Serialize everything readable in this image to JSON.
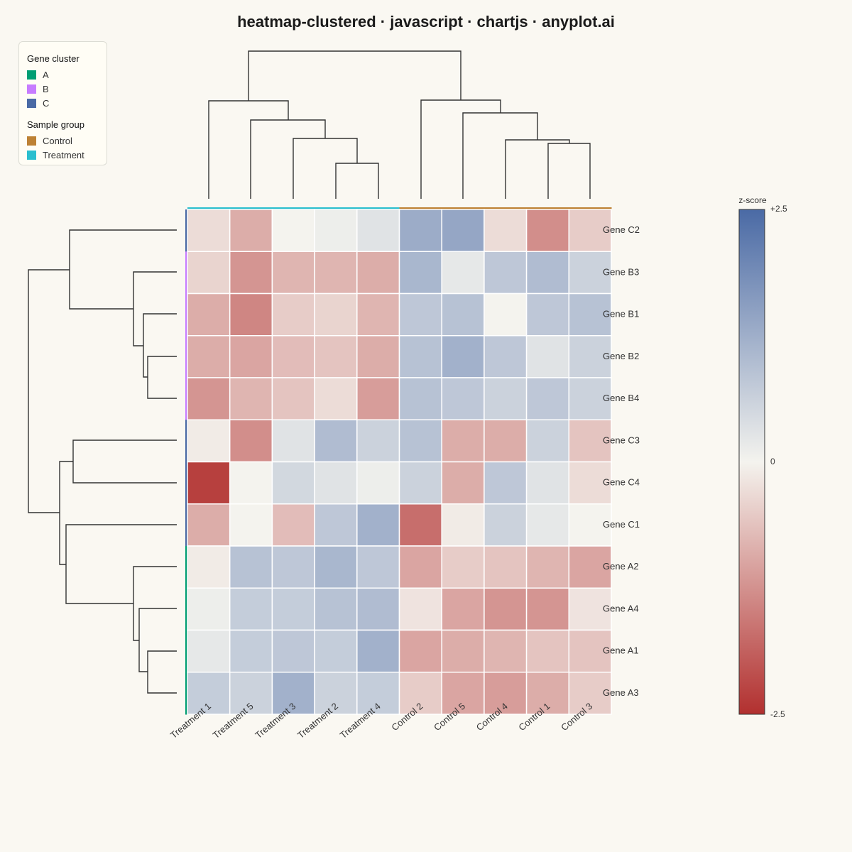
{
  "title": "heatmap-clustered · javascript · chartjs · anyplot.ai",
  "legend": {
    "gene_title": "Gene cluster",
    "gene_items": [
      {
        "label": "A",
        "color": "#009E73"
      },
      {
        "label": "B",
        "color": "#C77CFF"
      },
      {
        "label": "C",
        "color": "#4A6AA5"
      }
    ],
    "sample_title": "Sample group",
    "sample_items": [
      {
        "label": "Control",
        "color": "#BD8134"
      },
      {
        "label": "Treatment",
        "color": "#2BBECE"
      }
    ]
  },
  "colorbar": {
    "label": "z-score",
    "ticks": [
      "+2.5",
      "0",
      "-2.5"
    ],
    "colors": {
      "high": "#4A6AA5",
      "mid": "#F4F3EE",
      "low": "#B2302F"
    }
  },
  "chart_data": {
    "type": "heatmap",
    "title": "heatmap-clustered · javascript · chartjs · anyplot.ai",
    "columns": [
      "Treatment 1",
      "Treatment 5",
      "Treatment 3",
      "Treatment 2",
      "Treatment 4",
      "Control 2",
      "Control 5",
      "Control 4",
      "Control 1",
      "Control 3"
    ],
    "column_groups": [
      "Treatment",
      "Treatment",
      "Treatment",
      "Treatment",
      "Treatment",
      "Control",
      "Control",
      "Control",
      "Control",
      "Control"
    ],
    "rows": [
      "Gene C2",
      "Gene B3",
      "Gene B1",
      "Gene B2",
      "Gene B4",
      "Gene C3",
      "Gene C4",
      "Gene C1",
      "Gene A2",
      "Gene A4",
      "Gene A1",
      "Gene A3"
    ],
    "row_clusters": [
      "C",
      "B",
      "B",
      "B",
      "B",
      "C",
      "C",
      "C",
      "A",
      "A",
      "A",
      "A"
    ],
    "values": [
      [
        -0.3,
        -0.9,
        0.0,
        0.1,
        0.3,
        1.3,
        1.4,
        -0.3,
        -1.3,
        -0.5
      ],
      [
        -0.4,
        -1.2,
        -0.8,
        -0.8,
        -0.9,
        1.1,
        0.2,
        0.8,
        1.0,
        0.6
      ],
      [
        -0.9,
        -1.4,
        -0.5,
        -0.4,
        -0.8,
        0.8,
        0.9,
        0.0,
        0.8,
        0.9
      ],
      [
        -0.9,
        -1.0,
        -0.7,
        -0.6,
        -0.9,
        0.9,
        1.2,
        0.8,
        0.3,
        0.6
      ],
      [
        -1.2,
        -0.8,
        -0.6,
        -0.3,
        -1.1,
        0.9,
        0.8,
        0.6,
        0.8,
        0.6
      ],
      [
        -0.1,
        -1.3,
        0.3,
        1.0,
        0.6,
        0.9,
        -0.9,
        -0.9,
        0.6,
        -0.6
      ],
      [
        -2.3,
        0.0,
        0.5,
        0.3,
        0.1,
        0.6,
        -0.9,
        0.8,
        0.3,
        -0.3
      ],
      [
        -0.9,
        0.0,
        -0.7,
        0.8,
        1.2,
        -1.7,
        -0.1,
        0.6,
        0.2,
        0.0
      ],
      [
        -0.1,
        0.9,
        0.8,
        1.1,
        0.8,
        -1.0,
        -0.5,
        -0.6,
        -0.8,
        -1.0
      ],
      [
        0.1,
        0.7,
        0.7,
        0.9,
        1.0,
        -0.2,
        -1.0,
        -1.2,
        -1.2,
        -0.2
      ],
      [
        0.2,
        0.7,
        0.8,
        0.7,
        1.2,
        -1.0,
        -0.9,
        -0.8,
        -0.6,
        -0.6
      ],
      [
        0.7,
        0.6,
        1.2,
        0.6,
        0.7,
        -0.5,
        -1.0,
        -1.1,
        -0.9,
        -0.5
      ]
    ],
    "zlim": [
      -2.5,
      2.5
    ],
    "colorbar_label": "z-score"
  }
}
